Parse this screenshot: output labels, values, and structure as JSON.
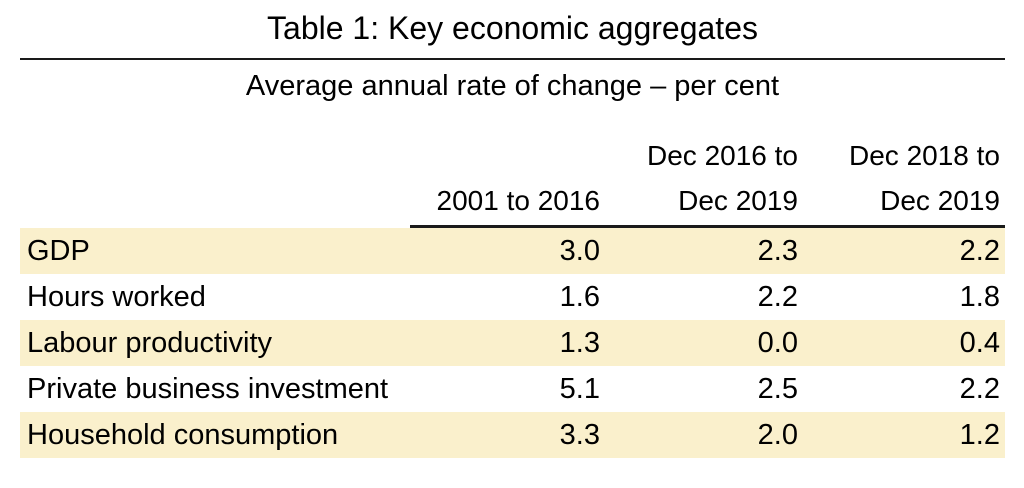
{
  "table": {
    "title": "Table 1: Key economic aggregates",
    "subtitle": "Average annual rate of change – per cent",
    "headers": {
      "col1": {
        "line1": "",
        "line2": "2001 to 2016"
      },
      "col2": {
        "line1": "Dec 2016 to",
        "line2": "Dec 2019"
      },
      "col3": {
        "line1": "Dec 2018 to",
        "line2": "Dec 2019"
      }
    },
    "rows": [
      {
        "label": "GDP",
        "v1": "3.0",
        "v2": "2.3",
        "v3": "2.2"
      },
      {
        "label": "Hours worked",
        "v1": "1.6",
        "v2": "2.2",
        "v3": "1.8"
      },
      {
        "label": "Labour productivity",
        "v1": "1.3",
        "v2": "0.0",
        "v3": "0.4"
      },
      {
        "label": "Private business investment",
        "v1": "5.1",
        "v2": "2.5",
        "v3": "2.2"
      },
      {
        "label": "Household consumption",
        "v1": "3.3",
        "v2": "2.0",
        "v3": "1.2"
      }
    ],
    "colors": {
      "row_shading": "#faf0cc",
      "rule": "#1a1a1a",
      "text": "#000000"
    }
  },
  "chart_data": {
    "type": "table",
    "title": "Table 1: Key economic aggregates",
    "subtitle": "Average annual rate of change – per cent",
    "columns": [
      "",
      "2001 to 2016",
      "Dec 2016 to Dec 2019",
      "Dec 2018 to Dec 2019"
    ],
    "rows": [
      [
        "GDP",
        3.0,
        2.3,
        2.2
      ],
      [
        "Hours worked",
        1.6,
        2.2,
        1.8
      ],
      [
        "Labour productivity",
        1.3,
        0.0,
        0.4
      ],
      [
        "Private business investment",
        5.1,
        2.5,
        2.2
      ],
      [
        "Household consumption",
        3.3,
        2.0,
        1.2
      ]
    ]
  }
}
